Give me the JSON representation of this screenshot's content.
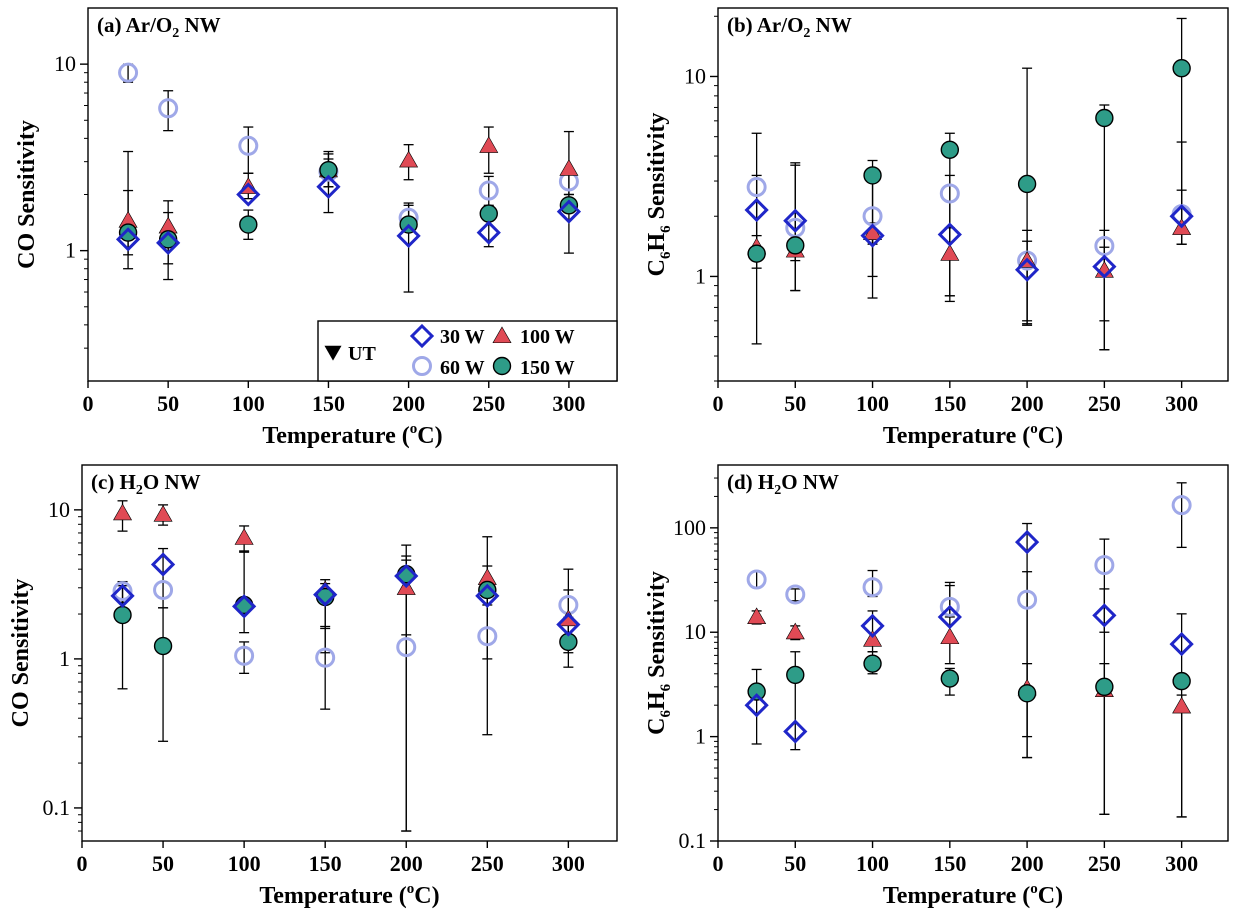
{
  "colors": {
    "ut": "#000000",
    "w30": "#1f26c8",
    "w60": "#9fa8e8",
    "w100": "#e04a55",
    "w150": "#2e9c88",
    "errorbar": "#000000"
  },
  "legend": {
    "entries": [
      {
        "key": "ut",
        "label": "UT",
        "marker": "triangle-down"
      },
      {
        "key": "w30",
        "label": "30 W",
        "marker": "diamond-open"
      },
      {
        "key": "w100",
        "label": "100 W",
        "marker": "triangle"
      },
      {
        "key": "w60",
        "label": "60 W",
        "marker": "circle-open"
      },
      {
        "key": "w150",
        "label": "150 W",
        "marker": "circle-filled"
      }
    ],
    "placement": "bottom-right of panel a"
  },
  "chart_data": [
    {
      "id": "a",
      "type": "scatter",
      "title": "(a) Ar/O",
      "title_sub": "2",
      "title_rest": " NW",
      "xlabel": "Temperature (",
      "xlabel_sup": "o",
      "xlabel_rest": "C)",
      "ylabel": "CO Sensitivity",
      "ylabel_sub": "",
      "ylabel_rest": "",
      "y_scale": "log",
      "xlim": [
        0,
        330
      ],
      "ylim": [
        0.2,
        20
      ],
      "x_ticks": [
        0,
        50,
        100,
        150,
        200,
        250,
        300
      ],
      "x_tick_labels": [
        "0",
        "50",
        "100",
        "150",
        "200",
        "250",
        "300"
      ],
      "y_ticks": [
        1,
        10
      ],
      "y_tick_labels": [
        "1",
        "10"
      ],
      "has_legend": true,
      "x": [
        25,
        50,
        100,
        150,
        200,
        250,
        300
      ],
      "series": [
        {
          "key": "w30",
          "marker": "diamond-open",
          "values": [
            1.15,
            1.1,
            2.0,
            2.2,
            1.2,
            1.25,
            1.62
          ],
          "err_lo": [
            null,
            null,
            null,
            null,
            null,
            null,
            null
          ],
          "err_hi": [
            null,
            null,
            null,
            null,
            null,
            null,
            null
          ]
        },
        {
          "key": "w60",
          "marker": "circle-open",
          "values": [
            9.0,
            5.8,
            3.65,
            2.65,
            1.5,
            2.1,
            2.35
          ],
          "err_lo": [
            8.0,
            4.4,
            2.6,
            2.2,
            1.3,
            1.7,
            2.0
          ],
          "err_hi": [
            10.0,
            7.2,
            4.6,
            3.1,
            1.75,
            2.5,
            2.7
          ]
        },
        {
          "key": "w100",
          "marker": "triangle",
          "values": [
            1.45,
            1.35,
            2.2,
            2.7,
            3.05,
            3.65,
            2.75
          ],
          "err_lo": [
            0.95,
            0.85,
            1.9,
            2.2,
            2.4,
            2.6,
            1.6
          ],
          "err_hi": [
            2.1,
            1.85,
            2.6,
            3.3,
            3.7,
            4.6,
            4.35
          ]
        },
        {
          "key": "w150",
          "marker": "circle-filled",
          "values": [
            1.25,
            1.15,
            1.38,
            2.7,
            1.38,
            1.58,
            1.75
          ],
          "err_lo": [
            0.8,
            0.7,
            1.15,
            1.6,
            0.6,
            1.05,
            0.97
          ],
          "err_hi": [
            3.4,
            1.6,
            1.65,
            3.4,
            1.8,
            1.75,
            2.0
          ]
        }
      ]
    },
    {
      "id": "b",
      "type": "scatter",
      "title": "(b) Ar/O",
      "title_sub": "2",
      "title_rest": " NW",
      "xlabel": "Temperature (",
      "xlabel_sup": "o",
      "xlabel_rest": "C)",
      "ylabel": "C",
      "ylabel_sub": "6",
      "ylabel_mid": "H",
      "ylabel_sub2": "6",
      "ylabel_rest": " Sensitivity",
      "y_scale": "log",
      "xlim": [
        0,
        330
      ],
      "ylim": [
        0.3,
        22
      ],
      "x_ticks": [
        0,
        50,
        100,
        150,
        200,
        250,
        300
      ],
      "x_tick_labels": [
        "0",
        "50",
        "100",
        "150",
        "200",
        "250",
        "300"
      ],
      "y_ticks": [
        1,
        10
      ],
      "y_tick_labels": [
        "1",
        "10"
      ],
      "has_legend": false,
      "x": [
        25,
        50,
        100,
        150,
        200,
        250,
        300
      ],
      "series": [
        {
          "key": "w30",
          "marker": "diamond-open",
          "values": [
            2.15,
            1.9,
            1.6,
            1.62,
            1.08,
            1.12,
            2.0
          ],
          "err_lo": [
            null,
            null,
            null,
            null,
            null,
            null,
            null
          ],
          "err_hi": [
            null,
            null,
            null,
            null,
            null,
            null,
            null
          ]
        },
        {
          "key": "w60",
          "marker": "circle-open",
          "values": [
            2.8,
            1.75,
            2.0,
            2.6,
            1.2,
            1.42,
            2.05
          ],
          "err_lo": [
            1.1,
            0.85,
            0.78,
            0.75,
            0.57,
            0.43,
            1.45
          ],
          "err_hi": [
            5.2,
            3.6,
            3.1,
            3.2,
            1.7,
            1.7,
            4.7
          ]
        },
        {
          "key": "w100",
          "marker": "triangle",
          "values": [
            1.4,
            1.35,
            1.65,
            1.3,
            1.2,
            1.07,
            1.75
          ],
          "err_lo": [
            1.2,
            1.2,
            1.45,
            0.8,
            0.6,
            0.6,
            1.45
          ],
          "err_hi": [
            1.6,
            1.5,
            1.85,
            1.75,
            1.5,
            1.4,
            2.7
          ]
        },
        {
          "key": "w150",
          "marker": "circle-filled",
          "values": [
            1.3,
            1.43,
            3.2,
            4.3,
            2.9,
            6.2,
            11.0
          ],
          "err_lo": [
            0.46,
            0.85,
            1.0,
            0.8,
            0.58,
            0.43,
            1.45
          ],
          "err_hi": [
            3.2,
            3.7,
            3.8,
            5.2,
            11.0,
            7.2,
            19.5
          ]
        }
      ]
    },
    {
      "id": "c",
      "type": "scatter",
      "title": "(c) H",
      "title_sub": "2",
      "title_rest": "O NW",
      "xlabel": "Temperature (",
      "xlabel_sup": "o",
      "xlabel_rest": "C)",
      "ylabel": "CO Sensitivity",
      "ylabel_sub": "",
      "ylabel_rest": "",
      "y_scale": "log",
      "xlim": [
        0,
        330
      ],
      "ylim": [
        0.06,
        20
      ],
      "x_ticks": [
        0,
        50,
        100,
        150,
        200,
        250,
        300
      ],
      "x_tick_labels": [
        "0",
        "50",
        "100",
        "150",
        "200",
        "250",
        "300"
      ],
      "y_ticks": [
        0.1,
        1,
        10
      ],
      "y_tick_labels": [
        "0.1",
        "1",
        "10"
      ],
      "has_legend": false,
      "x": [
        25,
        50,
        100,
        150,
        200,
        250,
        300
      ],
      "series": [
        {
          "key": "w30",
          "marker": "diamond-open",
          "values": [
            2.65,
            4.3,
            2.25,
            2.7,
            3.6,
            2.65,
            1.7
          ],
          "err_lo": [
            null,
            null,
            null,
            null,
            null,
            null,
            null
          ],
          "err_hi": [
            null,
            null,
            null,
            null,
            null,
            null,
            null
          ]
        },
        {
          "key": "w60",
          "marker": "circle-open",
          "values": [
            2.85,
            2.9,
            1.05,
            1.02,
            1.2,
            1.42,
            2.3
          ],
          "err_lo": [
            2.4,
            2.2,
            0.8,
            0.46,
            0.07,
            0.31,
            1.4
          ],
          "err_hi": [
            3.3,
            5.5,
            1.3,
            1.65,
            5.8,
            6.6,
            4.0
          ]
        },
        {
          "key": "w100",
          "marker": "triangle",
          "values": [
            9.5,
            9.3,
            6.5,
            2.9,
            3.0,
            3.5,
            1.85
          ],
          "err_lo": [
            7.2,
            7.9,
            5.2,
            1.6,
            1.45,
            2.3,
            1.1
          ],
          "err_hi": [
            11.5,
            10.8,
            7.8,
            3.4,
            4.6,
            4.2,
            2.9
          ]
        },
        {
          "key": "w150",
          "marker": "circle-filled",
          "values": [
            1.97,
            1.22,
            2.3,
            2.6,
            3.7,
            2.9,
            1.3
          ],
          "err_lo": [
            0.63,
            0.28,
            1.5,
            1.1,
            0.07,
            1.0,
            0.88
          ],
          "err_hi": [
            3.1,
            2.2,
            5.3,
            3.2,
            4.9,
            3.3,
            1.9
          ]
        }
      ]
    },
    {
      "id": "d",
      "type": "scatter",
      "title": "(d) H",
      "title_sub": "2",
      "title_rest": "O NW",
      "xlabel": "Temperature (",
      "xlabel_sup": "o",
      "xlabel_rest": "C)",
      "ylabel": "C",
      "ylabel_sub": "6",
      "ylabel_mid": "H",
      "ylabel_sub2": "6",
      "ylabel_rest": " Sensitivity",
      "y_scale": "log",
      "xlim": [
        0,
        330
      ],
      "ylim": [
        0.1,
        400
      ],
      "x_ticks": [
        0,
        50,
        100,
        150,
        200,
        250,
        300
      ],
      "x_tick_labels": [
        "0",
        "50",
        "100",
        "150",
        "200",
        "250",
        "300"
      ],
      "y_ticks": [
        0.1,
        1,
        10,
        100
      ],
      "y_tick_labels": [
        "0.1",
        "1",
        "10",
        "100"
      ],
      "has_legend": false,
      "x": [
        25,
        50,
        100,
        150,
        200,
        250,
        300
      ],
      "series": [
        {
          "key": "w30",
          "marker": "diamond-open",
          "values": [
            2.0,
            1.12,
            11.5,
            14.0,
            73.0,
            14.5,
            7.7
          ],
          "err_lo": [
            null,
            null,
            null,
            null,
            null,
            null,
            null
          ],
          "err_hi": [
            null,
            null,
            null,
            null,
            null,
            null,
            null
          ]
        },
        {
          "key": "w60",
          "marker": "circle-open",
          "values": [
            32.0,
            23.0,
            27.0,
            17.5,
            20.5,
            44.0,
            165.0
          ],
          "err_lo": [
            27.0,
            20.0,
            22.0,
            14.0,
            0.63,
            10.0,
            65.0
          ],
          "err_hi": [
            38.0,
            26.0,
            39.0,
            30.0,
            110.0,
            78.0,
            270.0
          ]
        },
        {
          "key": "w100",
          "marker": "triangle",
          "values": [
            14.0,
            10.0,
            8.5,
            9.0,
            2.9,
            2.8,
            1.95
          ],
          "err_lo": [
            12.0,
            8.5,
            6.5,
            5.0,
            1.0,
            0.18,
            0.17
          ],
          "err_hi": [
            16.0,
            11.5,
            16.0,
            28.0,
            5.0,
            5.0,
            2.5
          ]
        },
        {
          "key": "w150",
          "marker": "circle-filled",
          "values": [
            2.7,
            3.9,
            5.0,
            3.6,
            2.6,
            3.0,
            3.4
          ],
          "err_lo": [
            0.85,
            0.75,
            4.0,
            2.5,
            0.63,
            0.18,
            0.17
          ],
          "err_hi": [
            4.4,
            6.5,
            6.5,
            4.5,
            38.0,
            26.0,
            15.0
          ]
        }
      ]
    }
  ]
}
